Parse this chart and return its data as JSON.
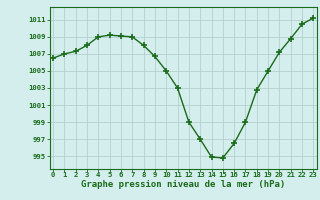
{
  "x": [
    0,
    1,
    2,
    3,
    4,
    5,
    6,
    7,
    8,
    9,
    10,
    11,
    12,
    13,
    14,
    15,
    16,
    17,
    18,
    19,
    20,
    21,
    22,
    23
  ],
  "y": [
    1006.5,
    1007.0,
    1007.3,
    1008.0,
    1009.0,
    1009.2,
    1009.1,
    1009.0,
    1008.0,
    1006.7,
    1005.0,
    1003.0,
    999.0,
    997.0,
    994.9,
    994.8,
    996.5,
    999.0,
    1002.8,
    1005.0,
    1007.2,
    1008.8,
    1010.5,
    1011.2
  ],
  "line_color": "#1a6b1a",
  "marker": "+",
  "markersize": 4,
  "linewidth": 1.0,
  "bg_color": "#d4eeee",
  "grid_color": "#b0c8c8",
  "tick_color": "#1a6b1a",
  "label_color": "#1a6b1a",
  "xlabel": "Graphe pression niveau de la mer (hPa)",
  "xlabel_fontsize": 6.5,
  "ytick_labels": [
    995,
    997,
    999,
    1001,
    1003,
    1005,
    1007,
    1009,
    1011
  ],
  "xtick_labels": [
    0,
    1,
    2,
    3,
    4,
    5,
    6,
    7,
    8,
    9,
    10,
    11,
    12,
    13,
    14,
    15,
    16,
    17,
    18,
    19,
    20,
    21,
    22,
    23
  ],
  "ylim": [
    993.5,
    1012.5
  ],
  "xlim": [
    -0.3,
    23.3
  ],
  "tick_fontsize": 5.2,
  "border_color": "#1a6b1a",
  "markeredgewidth": 1.2
}
